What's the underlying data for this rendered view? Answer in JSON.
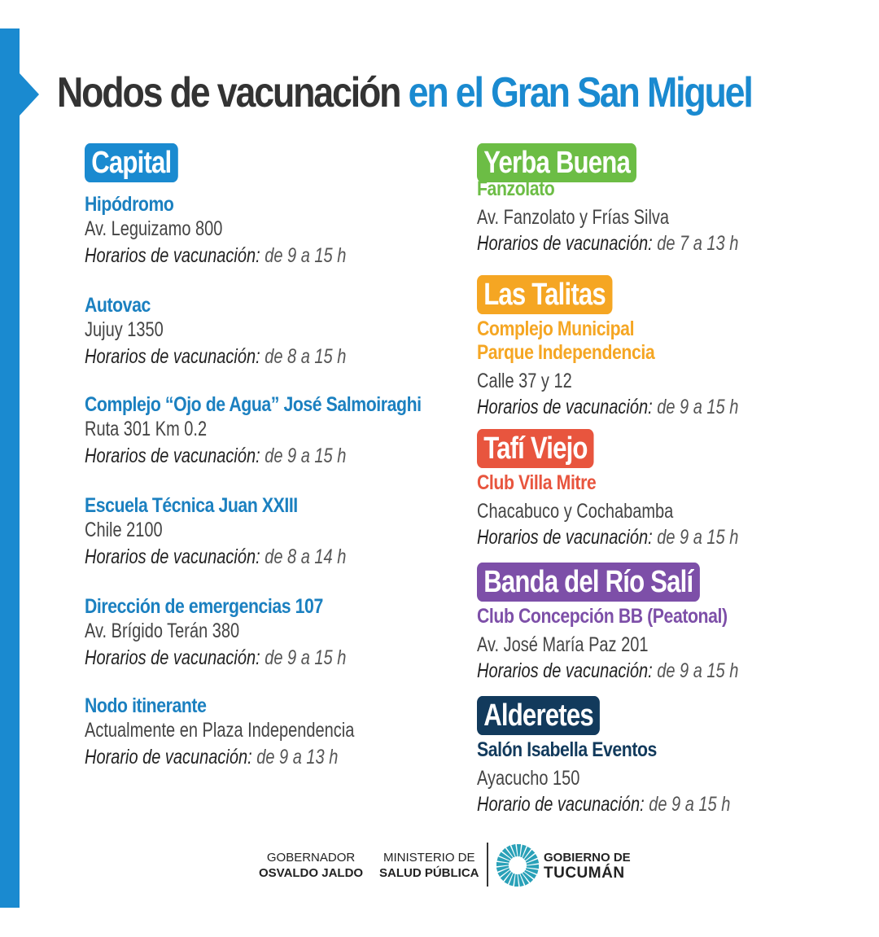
{
  "title": {
    "part1": "Nodos de vacunación",
    "part2": "en el Gran San Miguel"
  },
  "colors": {
    "blue": "#1a8ad0",
    "name_blue": "#1b80c0",
    "green": "#6cbd45",
    "orange": "#f5a623",
    "red": "#e8553e",
    "purple": "#7d4fa8",
    "navy": "#123a5c"
  },
  "left": {
    "badge": "Capital",
    "nodes": [
      {
        "name": "Hipódromo",
        "address": "Av. Leguizamo 800",
        "hours_label": "Horarios de vacunación:",
        "hours": "de 9 a 15 h"
      },
      {
        "name": "Autovac",
        "address": "Jujuy 1350",
        "hours_label": "Horarios de vacunación:",
        "hours": "de 8 a 15 h"
      },
      {
        "name": "Complejo “Ojo de Agua” José Salmoiraghi",
        "address": "Ruta 301 Km 0.2",
        "hours_label": "Horarios de vacunación:",
        "hours": "de 9 a 15 h"
      },
      {
        "name": "Escuela Técnica Juan XXIII",
        "address": "Chile 2100",
        "hours_label": "Horarios de vacunación:",
        "hours": "de 8 a 14 h"
      },
      {
        "name": "Dirección de emergencias 107",
        "address": "Av. Brígido Terán 380",
        "hours_label": "Horarios de vacunación:",
        "hours": "de 9 a 15 h"
      },
      {
        "name": "Nodo itinerante",
        "address": "Actualmente en Plaza Independencia",
        "hours_label": "Horario de vacunación:",
        "hours": "de 9 a 13 h"
      }
    ]
  },
  "right": [
    {
      "badge": "Yerba Buena",
      "color": "#6cbd45",
      "name_lines": [
        "Fanzolato"
      ],
      "address": "Av. Fanzolato y Frías Silva",
      "hours_label": "Horarios de vacunación:",
      "hours": "de 7 a 13 h"
    },
    {
      "badge": "Las Talitas",
      "color": "#f5a623",
      "name_lines": [
        "Complejo Municipal",
        "Parque Independencia"
      ],
      "address": "Calle 37 y 12",
      "hours_label": "Horarios de vacunación:",
      "hours": "de 9 a 15 h"
    },
    {
      "badge": "Tafí Viejo",
      "color": "#e8553e",
      "name_lines": [
        "Club Villa Mitre"
      ],
      "address": "Chacabuco y Cochabamba",
      "hours_label": "Horarios de vacunación:",
      "hours": "de 9 a 15 h"
    },
    {
      "badge": "Banda del Río Salí",
      "color": "#7d4fa8",
      "name_lines": [
        "Club Concepción BB  (Peatonal)"
      ],
      "address": "Av. José María Paz 201",
      "hours_label": "Horarios de vacunación:",
      "hours": "de 9 a 15 h"
    },
    {
      "badge": "Alderetes",
      "color": "#123a5c",
      "name_lines": [
        "Salón Isabella Eventos"
      ],
      "address": "Ayacucho 150",
      "hours_label": "Horario de vacunación:",
      "hours": "de 9 a 15 h"
    }
  ],
  "footer": {
    "governor_title": "GOBERNADOR",
    "governor_name": "OSVALDO JALDO",
    "ministry_line1": "MINISTERIO DE",
    "ministry_line2": "SALUD PÚBLICA",
    "gov_line1": "GOBIERNO DE",
    "gov_line2": "TUCUMÁN",
    "logo_icon": "sun-rays-logo-icon"
  }
}
